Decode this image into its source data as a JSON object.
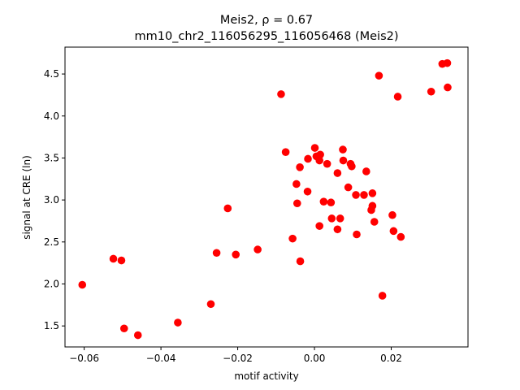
{
  "chart_data": {
    "type": "scatter",
    "title_lines": [
      "Meis2, ρ = 0.67",
      "mm10_chr2_116056295_116056468 (Meis2)"
    ],
    "xlabel": "motif activity",
    "ylabel": "signal at CRE (ln)",
    "xlim": [
      -0.065,
      0.04
    ],
    "ylim": [
      1.25,
      4.82
    ],
    "x_ticks": [
      -0.06,
      -0.04,
      -0.02,
      0.0,
      0.02
    ],
    "x_tick_labels": [
      "−0.06",
      "−0.04",
      "−0.02",
      "0.00",
      "0.02"
    ],
    "y_ticks": [
      1.5,
      2.0,
      2.5,
      3.0,
      3.5,
      4.0,
      4.5
    ],
    "y_tick_labels": [
      "1.5",
      "2.0",
      "2.5",
      "3.0",
      "3.5",
      "4.0",
      "4.5"
    ],
    "grid": false,
    "marker_color": "#ff0000",
    "points": [
      {
        "x": -0.0605,
        "y": 1.99
      },
      {
        "x": -0.0524,
        "y": 2.3
      },
      {
        "x": -0.0503,
        "y": 2.28
      },
      {
        "x": -0.0496,
        "y": 1.47
      },
      {
        "x": -0.046,
        "y": 1.39
      },
      {
        "x": -0.0356,
        "y": 1.54
      },
      {
        "x": -0.027,
        "y": 1.76
      },
      {
        "x": -0.0255,
        "y": 2.37
      },
      {
        "x": -0.0226,
        "y": 2.9
      },
      {
        "x": -0.0205,
        "y": 2.35
      },
      {
        "x": -0.0148,
        "y": 2.41
      },
      {
        "x": -0.0087,
        "y": 4.26
      },
      {
        "x": -0.0075,
        "y": 3.57
      },
      {
        "x": -0.0057,
        "y": 2.54
      },
      {
        "x": -0.0047,
        "y": 3.19
      },
      {
        "x": -0.0045,
        "y": 2.96
      },
      {
        "x": -0.0038,
        "y": 3.39
      },
      {
        "x": -0.0037,
        "y": 2.27
      },
      {
        "x": -0.0018,
        "y": 3.1
      },
      {
        "x": -0.0017,
        "y": 3.49
      },
      {
        "x": 0.0001,
        "y": 3.62
      },
      {
        "x": 0.0005,
        "y": 3.52
      },
      {
        "x": 0.0013,
        "y": 3.47
      },
      {
        "x": 0.0015,
        "y": 3.54
      },
      {
        "x": 0.0013,
        "y": 2.69
      },
      {
        "x": 0.0024,
        "y": 2.98
      },
      {
        "x": 0.0033,
        "y": 3.43
      },
      {
        "x": 0.0043,
        "y": 2.97
      },
      {
        "x": 0.0045,
        "y": 2.78
      },
      {
        "x": 0.006,
        "y": 3.32
      },
      {
        "x": 0.006,
        "y": 2.65
      },
      {
        "x": 0.0067,
        "y": 2.78
      },
      {
        "x": 0.0074,
        "y": 3.6
      },
      {
        "x": 0.0075,
        "y": 3.47
      },
      {
        "x": 0.0088,
        "y": 3.15
      },
      {
        "x": 0.0094,
        "y": 3.43
      },
      {
        "x": 0.0097,
        "y": 3.4
      },
      {
        "x": 0.0108,
        "y": 3.06
      },
      {
        "x": 0.011,
        "y": 2.59
      },
      {
        "x": 0.0129,
        "y": 3.06
      },
      {
        "x": 0.0135,
        "y": 3.34
      },
      {
        "x": 0.0148,
        "y": 2.88
      },
      {
        "x": 0.0151,
        "y": 2.93
      },
      {
        "x": 0.0151,
        "y": 3.08
      },
      {
        "x": 0.0156,
        "y": 2.74
      },
      {
        "x": 0.0168,
        "y": 4.48
      },
      {
        "x": 0.0177,
        "y": 1.86
      },
      {
        "x": 0.0203,
        "y": 2.82
      },
      {
        "x": 0.0206,
        "y": 2.63
      },
      {
        "x": 0.0217,
        "y": 4.23
      },
      {
        "x": 0.0225,
        "y": 2.56
      },
      {
        "x": 0.0304,
        "y": 4.29
      },
      {
        "x": 0.0333,
        "y": 4.62
      },
      {
        "x": 0.0346,
        "y": 4.63
      },
      {
        "x": 0.0347,
        "y": 4.34
      }
    ]
  }
}
